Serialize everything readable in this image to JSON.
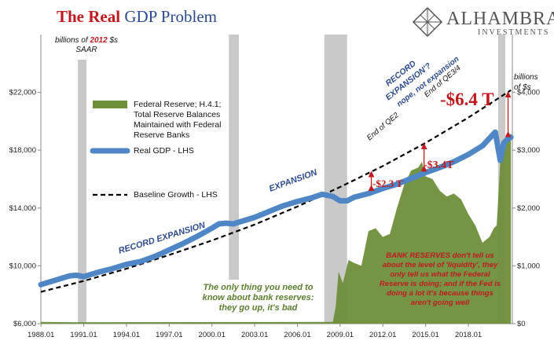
{
  "header": {
    "title_part1": "The Real",
    "title_part2": "GDP Problem",
    "logo_name": "ALHAMBRA",
    "logo_sub": "INVESTMENTS"
  },
  "units": {
    "left_line1": "billions of",
    "left_year": "2012",
    "left_line1_end": "$s",
    "left_line2": "SAAR",
    "right_line1": "billions",
    "right_line2": "of $s"
  },
  "legend": {
    "reserves_lines": [
      "Federal Reserve; H.4.1;",
      "Total Reserve Balances",
      "Maintained with Federal",
      "Reserve Banks"
    ],
    "gdp": "Real GDP - LHS",
    "baseline": "Baseline Growth - LHS"
  },
  "annotations": {
    "record_expansion": "RECORD EXPANSION",
    "expansion": "EXPANSION",
    "record_expansion_q_1": "RECORD",
    "record_expansion_q_2": "EXPANSION'?",
    "nope": "nope, not expansion",
    "end_qe2": "End of QE2",
    "end_qe34": "End of QE3/4",
    "gap_2011": "-$2.3 T",
    "gap_2015": "-$3.4T",
    "gap_2020": "-$6.4 T",
    "box1_lines": [
      "The only thing you need to",
      "know about bank reserves:",
      "they go up, it's bad"
    ],
    "box2_lines": [
      "BANK RESERVES don't tell us",
      "about the level of 'liquidity', they",
      "only tell us what the Federal",
      "Reserve is doing; and if the Fed is",
      "doing a lot it's because things",
      "aren't going well"
    ]
  },
  "colors": {
    "gdp": "#4f86c6",
    "baseline": "#000000",
    "reserves": "#6f8f3a",
    "recession": "#c0c0c0",
    "red": "#c0191e",
    "blue_text": "#2b4a8f",
    "green_text": "#5c7e2e"
  },
  "chart_data": {
    "type": "area",
    "x_ticks": [
      "1988.01",
      "1991.01",
      "1994.01",
      "1997.01",
      "2000.01",
      "2003.01",
      "2006.01",
      "2009.01",
      "2012.01",
      "2015.01",
      "2018.01"
    ],
    "y_left_ticks": [
      "$6,000",
      "$10,000",
      "$14,000",
      "$18,000",
      "$22,000"
    ],
    "y_left_range": [
      6000,
      26000
    ],
    "y_right_ticks": [
      "$0",
      "$1,000",
      "$2,000",
      "$3,000",
      "$4,000"
    ],
    "y_right_range": [
      0,
      5000
    ],
    "recessions": [
      [
        1990.6,
        1991.2
      ],
      [
        2001.2,
        2001.9
      ],
      [
        2007.9,
        2009.5
      ],
      [
        2020.1,
        2020.6
      ]
    ],
    "series": [
      {
        "name": "Real GDP - LHS",
        "axis": "left",
        "x": [
          1988.0,
          1989.0,
          1990.0,
          1990.5,
          1991.0,
          1992.0,
          1993.0,
          1994.0,
          1995.0,
          1996.0,
          1997.0,
          1998.0,
          1999.0,
          2000.0,
          2000.5,
          2001.0,
          2001.5,
          2002.0,
          2003.0,
          2004.0,
          2005.0,
          2006.0,
          2007.0,
          2007.75,
          2008.5,
          2009.0,
          2009.5,
          2010.0,
          2011.0,
          2012.0,
          2013.0,
          2014.0,
          2015.0,
          2016.0,
          2017.0,
          2018.0,
          2019.0,
          2019.9,
          2020.25,
          2020.5,
          2020.75,
          2021.0
        ],
        "values": [
          8700,
          9000,
          9300,
          9350,
          9250,
          9550,
          9800,
          10100,
          10300,
          10650,
          11100,
          11550,
          12050,
          12600,
          12900,
          12950,
          12900,
          13050,
          13350,
          13750,
          14150,
          14450,
          14700,
          14950,
          14800,
          14500,
          14500,
          14750,
          15000,
          15350,
          15650,
          16050,
          16450,
          16800,
          17200,
          17700,
          18300,
          19250,
          17300,
          18500,
          18750,
          18900
        ]
      },
      {
        "name": "Baseline Growth - LHS",
        "axis": "left",
        "x": [
          1988.0,
          1991.0,
          1994.0,
          1997.0,
          2000.0,
          2003.0,
          2006.0,
          2009.0,
          2012.0,
          2015.0,
          2018.0,
          2021.0
        ],
        "values": [
          8200,
          8950,
          9800,
          10750,
          11750,
          12850,
          14100,
          15450,
          16900,
          18500,
          20250,
          22150
        ]
      },
      {
        "name": "Federal Reserve; H.4.1; Total Reserve Balances Maintained with Federal Reserve Banks",
        "axis": "right",
        "x": [
          1988.0,
          1990.0,
          2008.5,
          2008.7,
          2008.9,
          2009.2,
          2009.6,
          2010.0,
          2010.5,
          2011.0,
          2011.5,
          2012.0,
          2012.5,
          2013.0,
          2013.5,
          2014.0,
          2014.5,
          2014.75,
          2015.0,
          2015.5,
          2016.0,
          2016.5,
          2017.0,
          2017.5,
          2018.0,
          2018.5,
          2019.0,
          2019.5,
          2019.8,
          2020.0,
          2020.3,
          2020.6,
          2021.0
        ],
        "values": [
          30,
          25,
          30,
          300,
          900,
          700,
          1100,
          1050,
          1000,
          1600,
          1650,
          1500,
          1550,
          2000,
          2400,
          2650,
          2700,
          2800,
          2550,
          2500,
          2300,
          2200,
          2250,
          2150,
          1900,
          1700,
          1400,
          1500,
          1650,
          1700,
          3000,
          3100,
          3300
        ]
      }
    ],
    "gaps": [
      {
        "label": "-$2.3 T",
        "x": 2011.2
      },
      {
        "label": "-$3.4T",
        "x": 2014.9
      },
      {
        "label": "-$6.4 T",
        "x": 2020.8
      }
    ]
  }
}
